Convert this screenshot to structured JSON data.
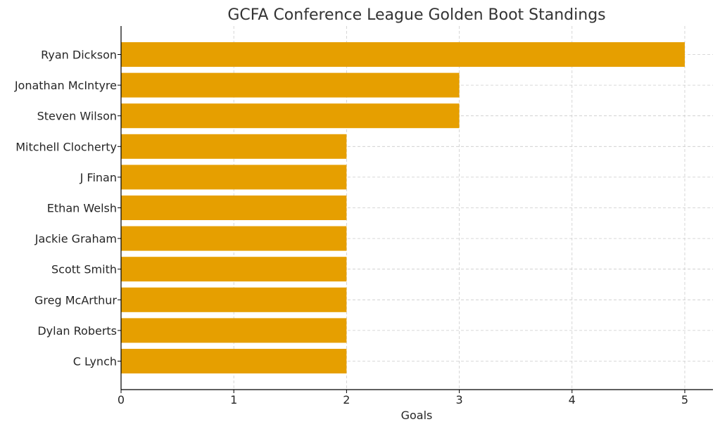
{
  "chart_data": {
    "type": "bar",
    "orientation": "horizontal",
    "title": "GCFA Conference League Golden Boot Standings",
    "xlabel": "Goals",
    "ylabel": "",
    "categories": [
      "Ryan Dickson",
      "Jonathan McIntyre",
      "Steven Wilson",
      "Mitchell Clocherty",
      "J Finan",
      "Ethan Welsh",
      "Jackie Graham",
      "Scott Smith",
      "Greg McArthur",
      "Dylan Roberts",
      "C Lynch"
    ],
    "values": [
      5,
      3,
      3,
      2,
      2,
      2,
      2,
      2,
      2,
      2,
      2
    ],
    "xlim": [
      0,
      5.25
    ],
    "xticks": [
      "0",
      "1",
      "2",
      "3",
      "4",
      "5"
    ],
    "grid": true,
    "bar_color": "#E69F00"
  }
}
